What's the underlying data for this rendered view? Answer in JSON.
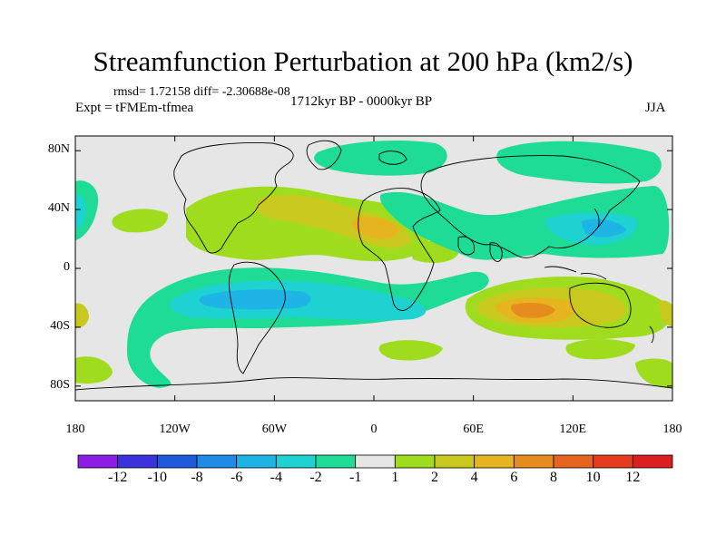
{
  "title": "Streamfunction Perturbation at 200 hPa (km2/s)",
  "stats": "rmsd= 1.72158 diff= -2.30688e-08",
  "experiment": "Expt = tFMEm-tfmea",
  "period": "1712kyr BP - 0000kyr BP",
  "season": "JJA",
  "lat_labels": [
    "80N",
    "40N",
    "0",
    "40S",
    "80S"
  ],
  "lon_labels": [
    "180",
    "120W",
    "60W",
    "0",
    "60E",
    "120E",
    "180"
  ],
  "colorbar": {
    "labels": [
      "-12",
      "-10",
      "-8",
      "-6",
      "-4",
      "-2",
      "-1",
      "1",
      "2",
      "4",
      "6",
      "8",
      "10",
      "12"
    ],
    "colors": [
      "#8c1ee6",
      "#3c32dc",
      "#1e5adc",
      "#1e8ce6",
      "#1eb4e6",
      "#1ed2d2",
      "#1edc96",
      "#e6e6e6",
      "#a0dc1e",
      "#c8c81e",
      "#e6b41e",
      "#e68c1e",
      "#e6641e",
      "#e63c1e",
      "#dc1e1e"
    ]
  }
}
